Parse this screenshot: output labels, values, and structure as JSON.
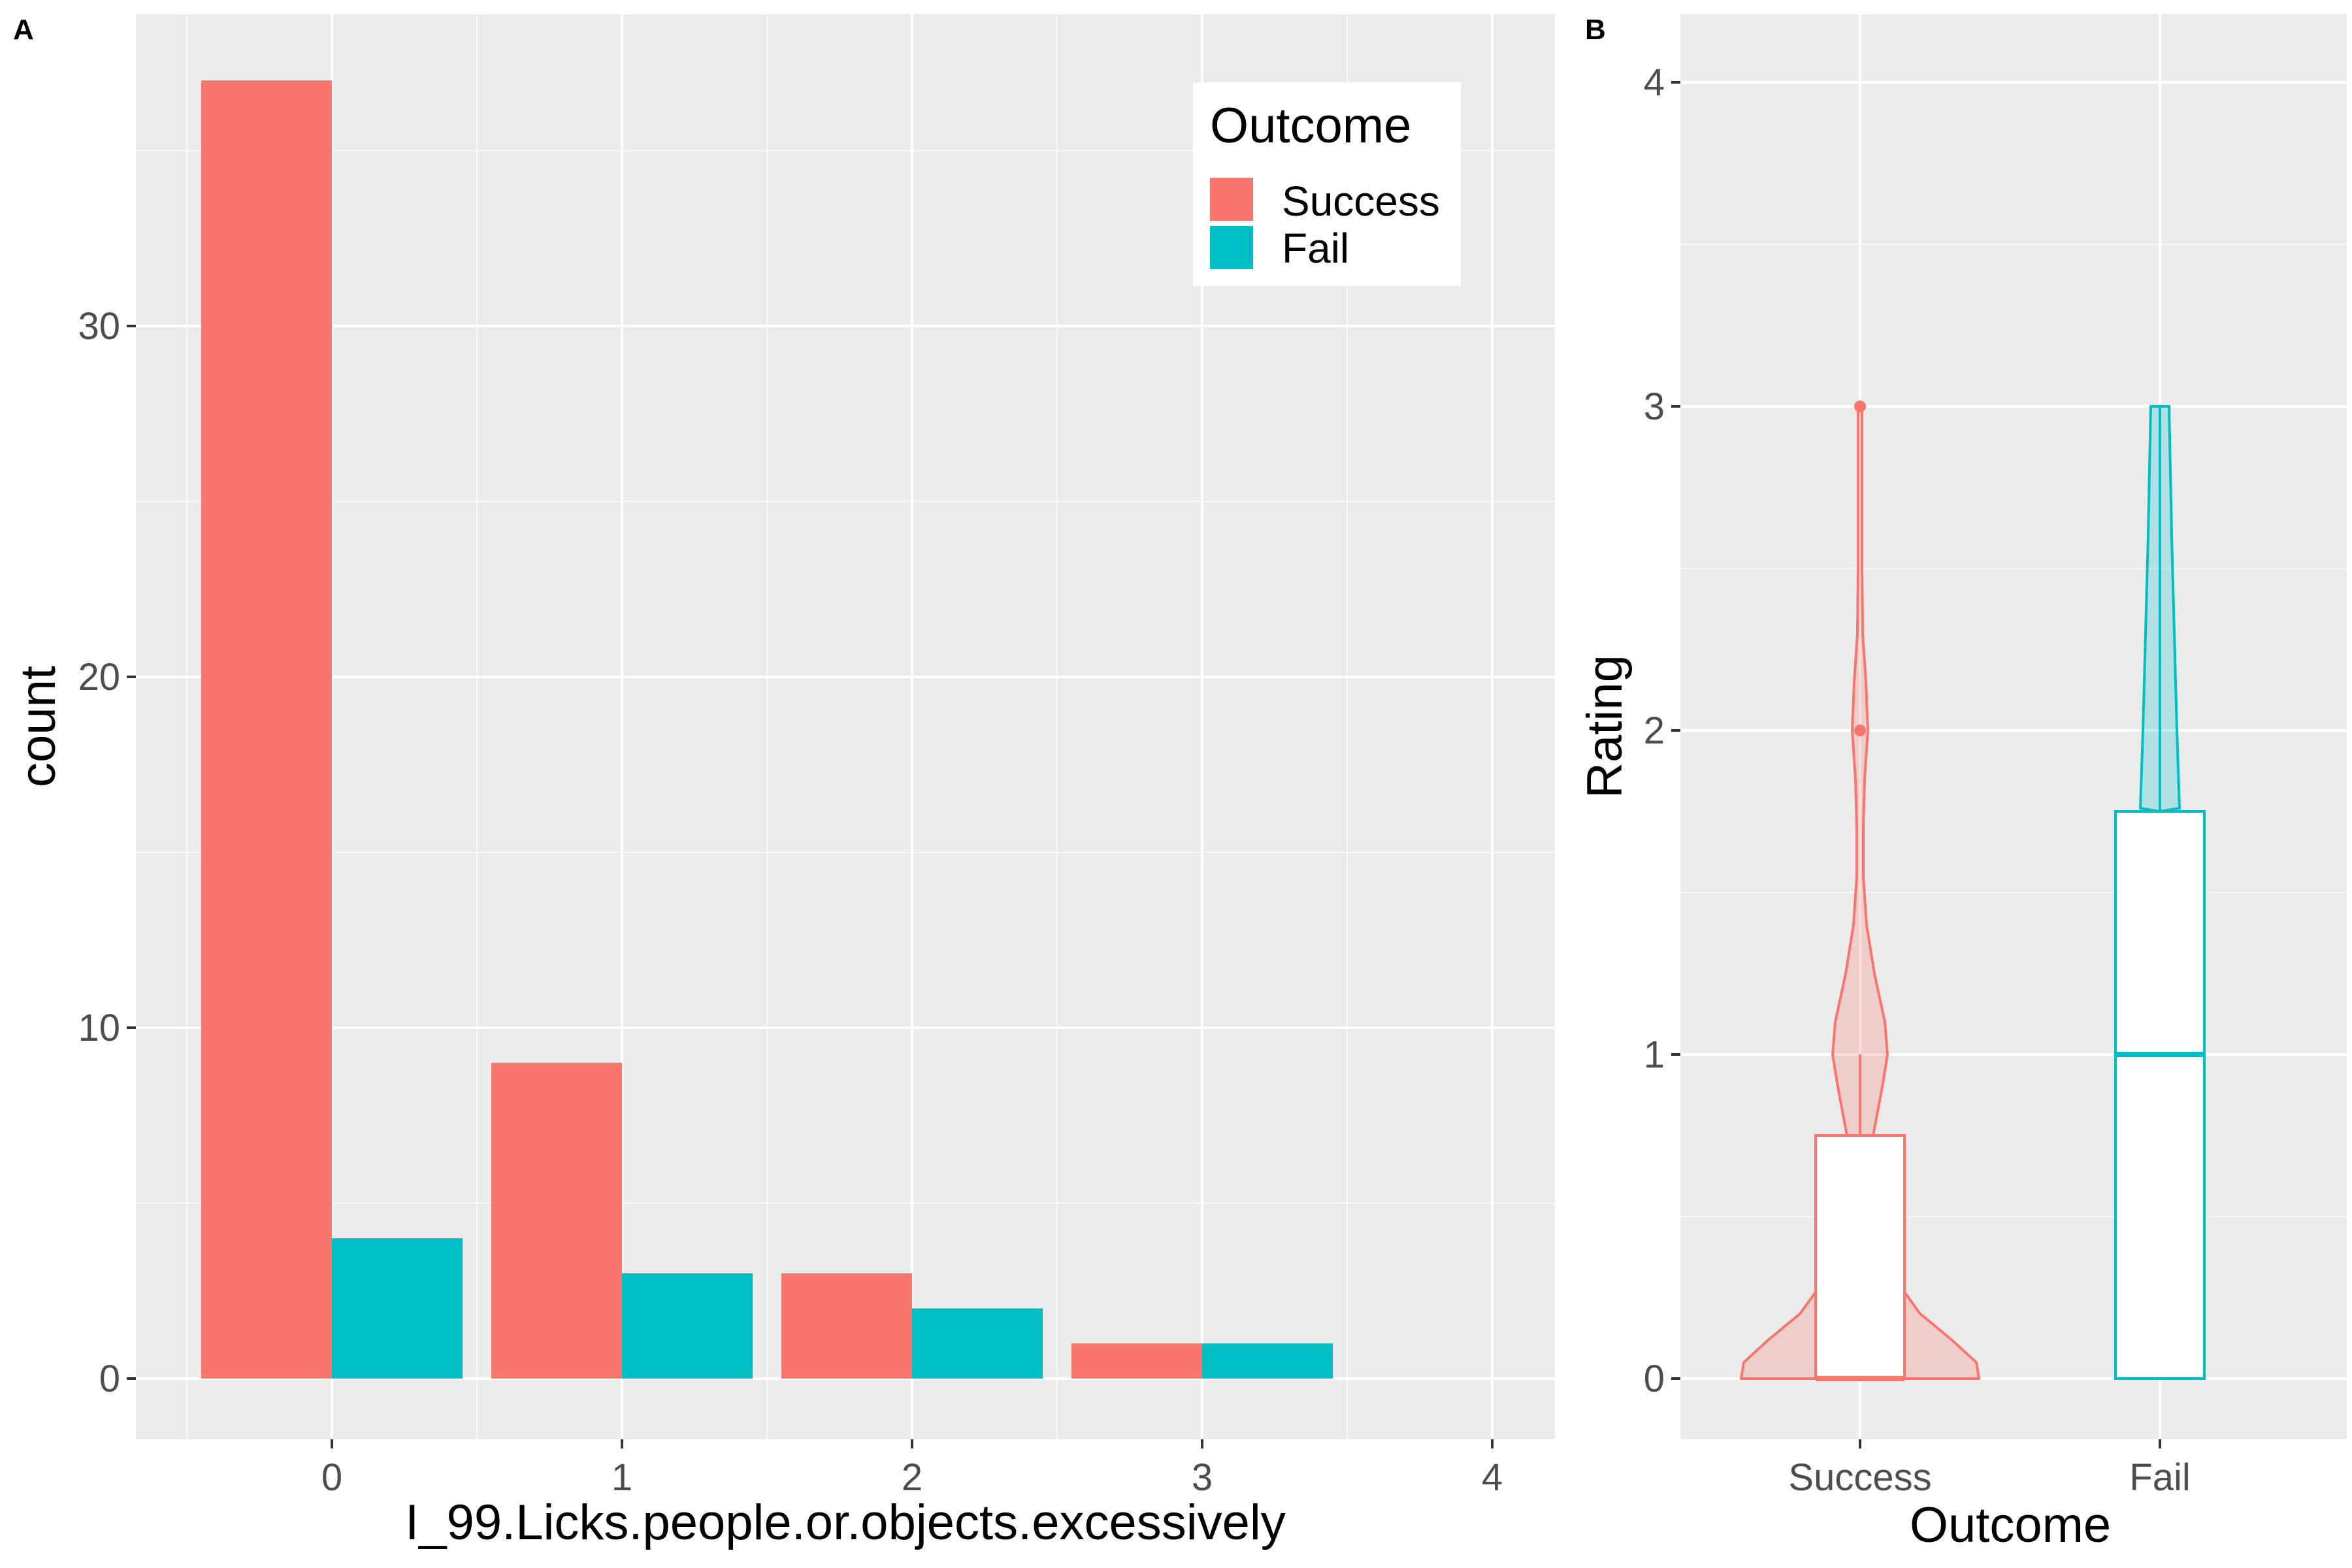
{
  "chart_data": [
    {
      "panel": "A",
      "type": "bar",
      "xlabel": "I_99.Licks.people.or.objects.excessively",
      "ylabel": "count",
      "categories": [
        "0",
        "1",
        "2",
        "3"
      ],
      "x_ticks": [
        "0",
        "1",
        "2",
        "3",
        "4"
      ],
      "y_ticks": [
        "0",
        "10",
        "20",
        "30"
      ],
      "xlim": [
        -0.5,
        4.5
      ],
      "ylim": [
        0,
        37
      ],
      "grid": true,
      "legend": {
        "title": "Outcome",
        "position": "top-right"
      },
      "series": [
        {
          "name": "Success",
          "color": "#F8766D",
          "values": [
            37,
            9,
            3,
            1
          ]
        },
        {
          "name": "Fail",
          "color": "#00BFC4",
          "values": [
            4,
            3,
            2,
            1
          ]
        }
      ]
    },
    {
      "panel": "B",
      "type": "violin-box",
      "xlabel": "Outcome",
      "ylabel": "Rating",
      "categories": [
        "Success",
        "Fail"
      ],
      "y_ticks": [
        "0",
        "1",
        "2",
        "3",
        "4"
      ],
      "ylim": [
        0,
        4
      ],
      "grid": true,
      "groups": [
        {
          "name": "Success",
          "color": "#F8766D",
          "box": {
            "min": 0,
            "q1": 0,
            "median": 0,
            "q3": 0.75,
            "whisker_high": 1
          },
          "outliers": [
            2,
            3
          ],
          "violin_max": 3
        },
        {
          "name": "Fail",
          "color": "#00BFC4",
          "box": {
            "min": 0,
            "q1": 0,
            "median": 1,
            "q3": 1.75,
            "whisker_high": 3
          },
          "outliers": [],
          "violin_max": 3
        }
      ]
    }
  ],
  "panel_labels": [
    "A",
    "B"
  ],
  "colors": {
    "panel_bg": "#EBEBEB",
    "grid": "#FFFFFF",
    "tick_text": "#4D4D4D"
  }
}
